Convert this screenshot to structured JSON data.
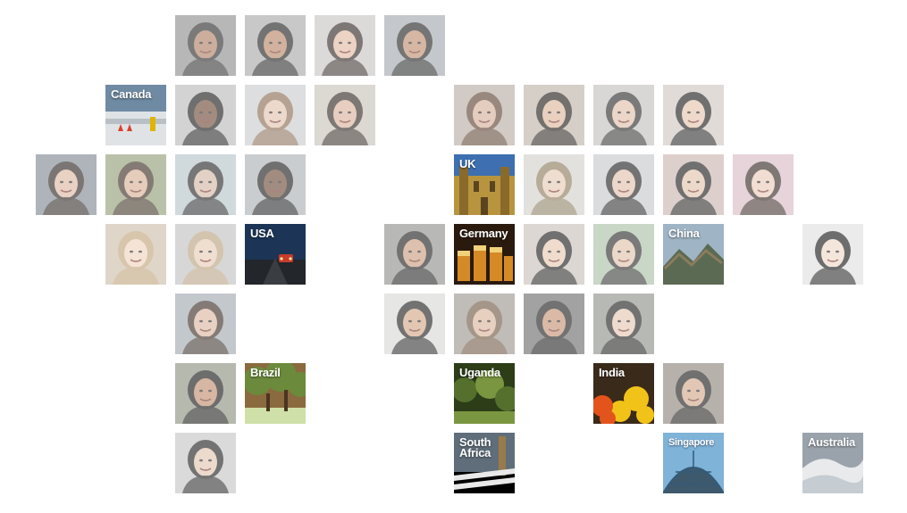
{
  "countries": [
    {
      "key": "canada",
      "label": "Canada",
      "scene": "snow",
      "colors": [
        "#6f8aa3",
        "#dfe3e6",
        "#b8c0c6"
      ]
    },
    {
      "key": "uk",
      "label": "UK",
      "scene": "castle",
      "colors": [
        "#3d6fb1",
        "#b8943f",
        "#8a6a2a"
      ]
    },
    {
      "key": "usa",
      "label": "USA",
      "scene": "road",
      "colors": [
        "#1c3556",
        "#23262b",
        "#c83b2a"
      ]
    },
    {
      "key": "germany",
      "label": "Germany",
      "scene": "beer",
      "colors": [
        "#2a1a0e",
        "#d58a25",
        "#f1d27a"
      ]
    },
    {
      "key": "china",
      "label": "China",
      "scene": "mountains",
      "colors": [
        "#9fb4c4",
        "#5b6a53",
        "#8b7c5e"
      ]
    },
    {
      "key": "brazil",
      "label": "Brazil",
      "scene": "trees",
      "colors": [
        "#6c8a3c",
        "#8a6a3e",
        "#cfe0a8"
      ]
    },
    {
      "key": "uganda",
      "label": "Uganda",
      "scene": "jungle",
      "colors": [
        "#2c3d18",
        "#55702c",
        "#7b9641"
      ]
    },
    {
      "key": "india",
      "label": "India",
      "scene": "flowers",
      "colors": [
        "#3a2a1a",
        "#f1c319",
        "#e3541d"
      ]
    },
    {
      "key": "south-africa",
      "label": "South\nAfrica",
      "scene": "zebra",
      "colors": [
        "#5f6e7a",
        "#1c1c1c",
        "#e9e9e9"
      ]
    },
    {
      "key": "singapore",
      "label": "Singapore",
      "scene": "dome",
      "colors": [
        "#7fb3d8",
        "#345a78",
        "#d6e6f0"
      ]
    },
    {
      "key": "australia",
      "label": "Australia",
      "scene": "wave",
      "colors": [
        "#9aa3ab",
        "#e8eaec",
        "#c5ccd2"
      ]
    }
  ],
  "people": [
    {
      "id": "p1",
      "bg": "#8c8c8c",
      "hair": "#2a2a2a",
      "skin": "#b07d62"
    },
    {
      "id": "p2",
      "bg": "#a7a7a7",
      "hair": "#1f1f1f",
      "skin": "#b88464"
    },
    {
      "id": "p3",
      "bg": "#c7c4c2",
      "hair": "#2f2623",
      "skin": "#e3b9a1"
    },
    {
      "id": "p4",
      "bg": "#a1a8ad",
      "hair": "#222222",
      "skin": "#bd8c6c"
    },
    {
      "id": "p5",
      "bg": "#b9b9b9",
      "hair": "#181818",
      "skin": "#6b4632"
    },
    {
      "id": "p6",
      "bg": "#c8cacc",
      "hair": "#8a6a50",
      "skin": "#e1c2ae"
    },
    {
      "id": "p7",
      "bg": "#c7c1b7",
      "hair": "#302622",
      "skin": "#d9b19a"
    },
    {
      "id": "p8",
      "bg": "#b6aba2",
      "hair": "#5c4030",
      "skin": "#d4ae98"
    },
    {
      "id": "p9",
      "bg": "#bdb2a6",
      "hair": "#1f1a17",
      "skin": "#ddb499"
    },
    {
      "id": "p10",
      "bg": "#c2c0be",
      "hair": "#292929",
      "skin": "#e0bea8"
    },
    {
      "id": "p11",
      "bg": "#d0c6bf",
      "hair": "#1a1a1a",
      "skin": "#e4c3aa"
    },
    {
      "id": "p12",
      "bg": "#7d8790",
      "hair": "#2b2420",
      "skin": "#dcb69f"
    },
    {
      "id": "p13",
      "bg": "#8f9e76",
      "hair": "#3c2c22",
      "skin": "#d7ad92"
    },
    {
      "id": "p14",
      "bg": "#b4c3c7",
      "hair": "#252525",
      "skin": "#d2b5a2"
    },
    {
      "id": "p15",
      "bg": "#aab0b3",
      "hair": "#1a1a1a",
      "skin": "#6a4634"
    },
    {
      "id": "p16",
      "bg": "#d1cfcb",
      "hair": "#8a7a5a",
      "skin": "#e6c9b3"
    },
    {
      "id": "p17",
      "bg": "#c5c7ca",
      "hair": "#1f1f1f",
      "skin": "#e1c0aa"
    },
    {
      "id": "p18",
      "bg": "#c9b2ae",
      "hair": "#1a1a1a",
      "skin": "#e3c2ab"
    },
    {
      "id": "p19",
      "bg": "#8c8f88",
      "hair": "#1c1c1c",
      "skin": "#e5c6af"
    },
    {
      "id": "p20",
      "bg": "#cdbda9",
      "hair": "#bfa47a",
      "skin": "#efd3bd"
    },
    {
      "id": "p21",
      "bg": "#bfbfbf",
      "hair": "#b8a17e",
      "skin": "#e8cbb5"
    },
    {
      "id": "p22",
      "bg": "#8e8f8a",
      "hair": "#1c1c1c",
      "skin": "#c99a7c"
    },
    {
      "id": "p23",
      "bg": "#c8c0b8",
      "hair": "#1a1a1a",
      "skin": "#e7c8b0"
    },
    {
      "id": "p24",
      "bg": "#a9bfa4",
      "hair": "#2a2a2a",
      "skin": "#e2c1a8"
    },
    {
      "id": "p25",
      "bg": "#e0e0e0",
      "hair": "#141414",
      "skin": "#efd8c7"
    },
    {
      "id": "p26",
      "bg": "#9fa8af",
      "hair": "#3a2c24",
      "skin": "#dab59e"
    },
    {
      "id": "p27",
      "bg": "#d7d7d5",
      "hair": "#1c1c1c",
      "skin": "#d3a585"
    },
    {
      "id": "p28",
      "bg": "#9b948d",
      "hair": "#6e5640",
      "skin": "#dbb49b"
    },
    {
      "id": "p29",
      "bg": "#6a6a6a",
      "hair": "#1c1c1c",
      "skin": "#c49072"
    },
    {
      "id": "p30",
      "bg": "#8b8f7e",
      "hair": "#141414",
      "skin": "#c08a6c"
    },
    {
      "id": "p31",
      "bg": "#8a8278",
      "hair": "#1a1a1a",
      "skin": "#d1a689"
    },
    {
      "id": "p32",
      "bg": "#c4c4c4",
      "hair": "#1f1f1f",
      "skin": "#e2c4b0"
    },
    {
      "id": "p33",
      "bg": "#d9b9c4",
      "hair": "#332620",
      "skin": "#e9c9b8"
    }
  ]
}
